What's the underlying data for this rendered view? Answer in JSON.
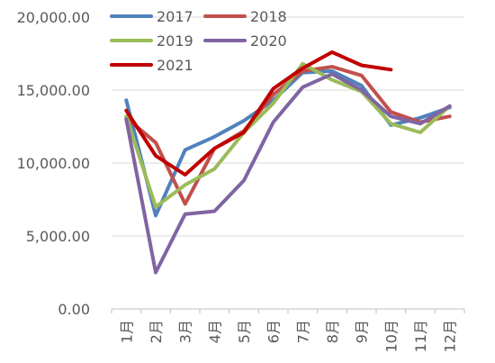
{
  "chart_data": {
    "type": "line",
    "title": "",
    "xlabel": "",
    "ylabel": "",
    "categories": [
      "1月",
      "2月",
      "3月",
      "4月",
      "5月",
      "6月",
      "7月",
      "8月",
      "9月",
      "10月",
      "11月",
      "12月"
    ],
    "y_ticks": [
      "0.00",
      "5,000.00",
      "10,000.00",
      "15,000.00",
      "20,000.00"
    ],
    "ylim": [
      0,
      20000
    ],
    "grid": "horizontal",
    "legend_position": "top",
    "series": [
      {
        "name": "2017",
        "color": "#4F81BD",
        "values": [
          14300,
          6400,
          10900,
          11800,
          12900,
          14300,
          16200,
          16300,
          15300,
          12600,
          13100,
          13800
        ]
      },
      {
        "name": "2018",
        "color": "#C0504D",
        "values": [
          13100,
          11400,
          7200,
          11000,
          12200,
          14700,
          16300,
          16600,
          16000,
          13500,
          12800,
          13200
        ]
      },
      {
        "name": "2019",
        "color": "#9BBB59",
        "values": [
          13200,
          7000,
          8500,
          9600,
          12100,
          14100,
          16800,
          15700,
          14900,
          12700,
          12100,
          13900
        ]
      },
      {
        "name": "2020",
        "color": "#8064A2",
        "values": [
          13000,
          2500,
          6500,
          6700,
          8800,
          12800,
          15200,
          16100,
          15000,
          13200,
          12700,
          13900
        ]
      },
      {
        "name": "2021",
        "color": "#C00000",
        "values": [
          13600,
          10500,
          9200,
          11000,
          12100,
          15100,
          16500,
          17600,
          16700,
          16400,
          null,
          null
        ]
      }
    ]
  }
}
